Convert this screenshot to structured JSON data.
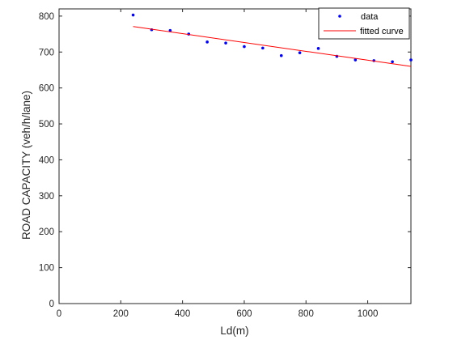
{
  "chart_data": {
    "type": "scatter",
    "title": "",
    "xlabel": "Ld(m)",
    "ylabel": "ROAD CAPACITY (veh/h/lane)",
    "xlim": [
      0,
      1140
    ],
    "ylim": [
      0,
      820
    ],
    "xticks": [
      0,
      200,
      400,
      600,
      800,
      1000
    ],
    "yticks": [
      0,
      100,
      200,
      300,
      400,
      500,
      600,
      700,
      800
    ],
    "grid": false,
    "legend_position": "top-right",
    "series": [
      {
        "name": "data",
        "kind": "markers",
        "color": "#0000ff",
        "x": [
          240,
          300,
          360,
          420,
          480,
          540,
          600,
          660,
          720,
          780,
          840,
          900,
          960,
          1020,
          1080,
          1140
        ],
        "y": [
          803,
          762,
          760,
          750,
          728,
          725,
          715,
          711,
          690,
          698,
          710,
          688,
          678,
          676,
          673,
          678
        ]
      },
      {
        "name": "fitted curve",
        "kind": "line",
        "color": "#ff0000",
        "x": [
          240,
          1140
        ],
        "y": [
          771,
          660
        ]
      }
    ]
  }
}
